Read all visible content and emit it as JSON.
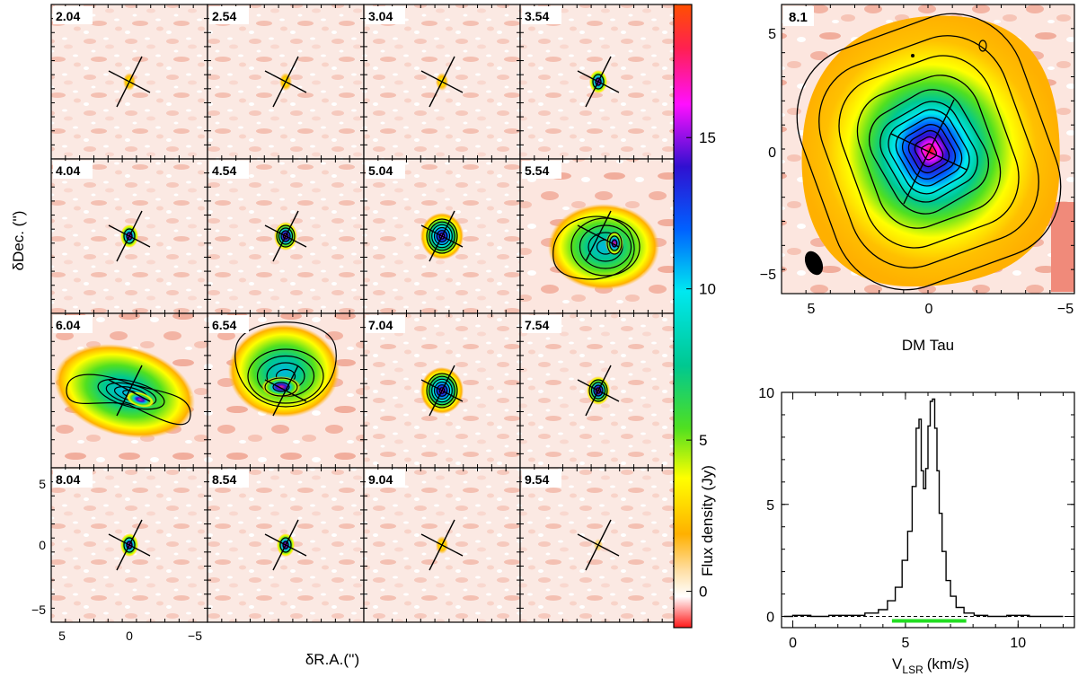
{
  "channel_maps": {
    "velocities": [
      "2.04",
      "2.54",
      "3.04",
      "3.54",
      "4.04",
      "4.54",
      "5.04",
      "5.54",
      "6.04",
      "6.54",
      "7.04",
      "7.54",
      "8.04",
      "8.54",
      "9.04",
      "9.54"
    ],
    "xlabel": "δR.A.('')",
    "ylabel": "δDec. ('')",
    "x_ticks": [
      "5",
      "0",
      "−5"
    ],
    "y_ticks": [
      "5",
      "0",
      "−5"
    ]
  },
  "colorbar": {
    "label": "Flux density (Jy)",
    "ticks": [
      "0",
      "5",
      "10",
      "15"
    ],
    "range": [
      -1.2,
      19.4
    ]
  },
  "moment_map": {
    "label": "8.1",
    "title": "DM Tau",
    "x_ticks": [
      "5",
      "0",
      "−5"
    ],
    "y_ticks": [
      "5",
      "0",
      "−5"
    ]
  },
  "chart_data": {
    "type": "line",
    "title": "",
    "xlabel_main": "V",
    "xlabel_sub": "LSR",
    "xlabel_unit": "(km/s)",
    "ylabel": "",
    "x_ticks": [
      "0",
      "5",
      "10"
    ],
    "y_ticks": [
      "0",
      "5",
      "10"
    ],
    "xlim": [
      -0.5,
      12.5
    ],
    "ylim": [
      -0.5,
      10
    ],
    "x": [
      -0.4,
      0.4,
      1.2,
      2.0,
      2.8,
      3.6,
      4.0,
      4.4,
      4.7,
      5.0,
      5.2,
      5.4,
      5.55,
      5.65,
      5.75,
      5.85,
      5.95,
      6.05,
      6.15,
      6.25,
      6.35,
      6.45,
      6.55,
      6.7,
      6.9,
      7.1,
      7.4,
      7.8,
      8.3,
      9.0,
      10.0,
      11.0,
      12.0
    ],
    "y": [
      0.0,
      0.05,
      0.0,
      0.05,
      0.05,
      0.15,
      0.3,
      0.7,
      1.3,
      2.5,
      3.8,
      5.8,
      8.4,
      8.8,
      6.5,
      5.7,
      6.6,
      8.5,
      9.6,
      9.7,
      8.4,
      6.5,
      4.6,
      2.9,
      1.6,
      0.9,
      0.4,
      0.15,
      0.05,
      0.0,
      0.05,
      0.0,
      0.0
    ],
    "integration_range": [
      4.4,
      7.7
    ],
    "integration_color": "#22dd22"
  }
}
